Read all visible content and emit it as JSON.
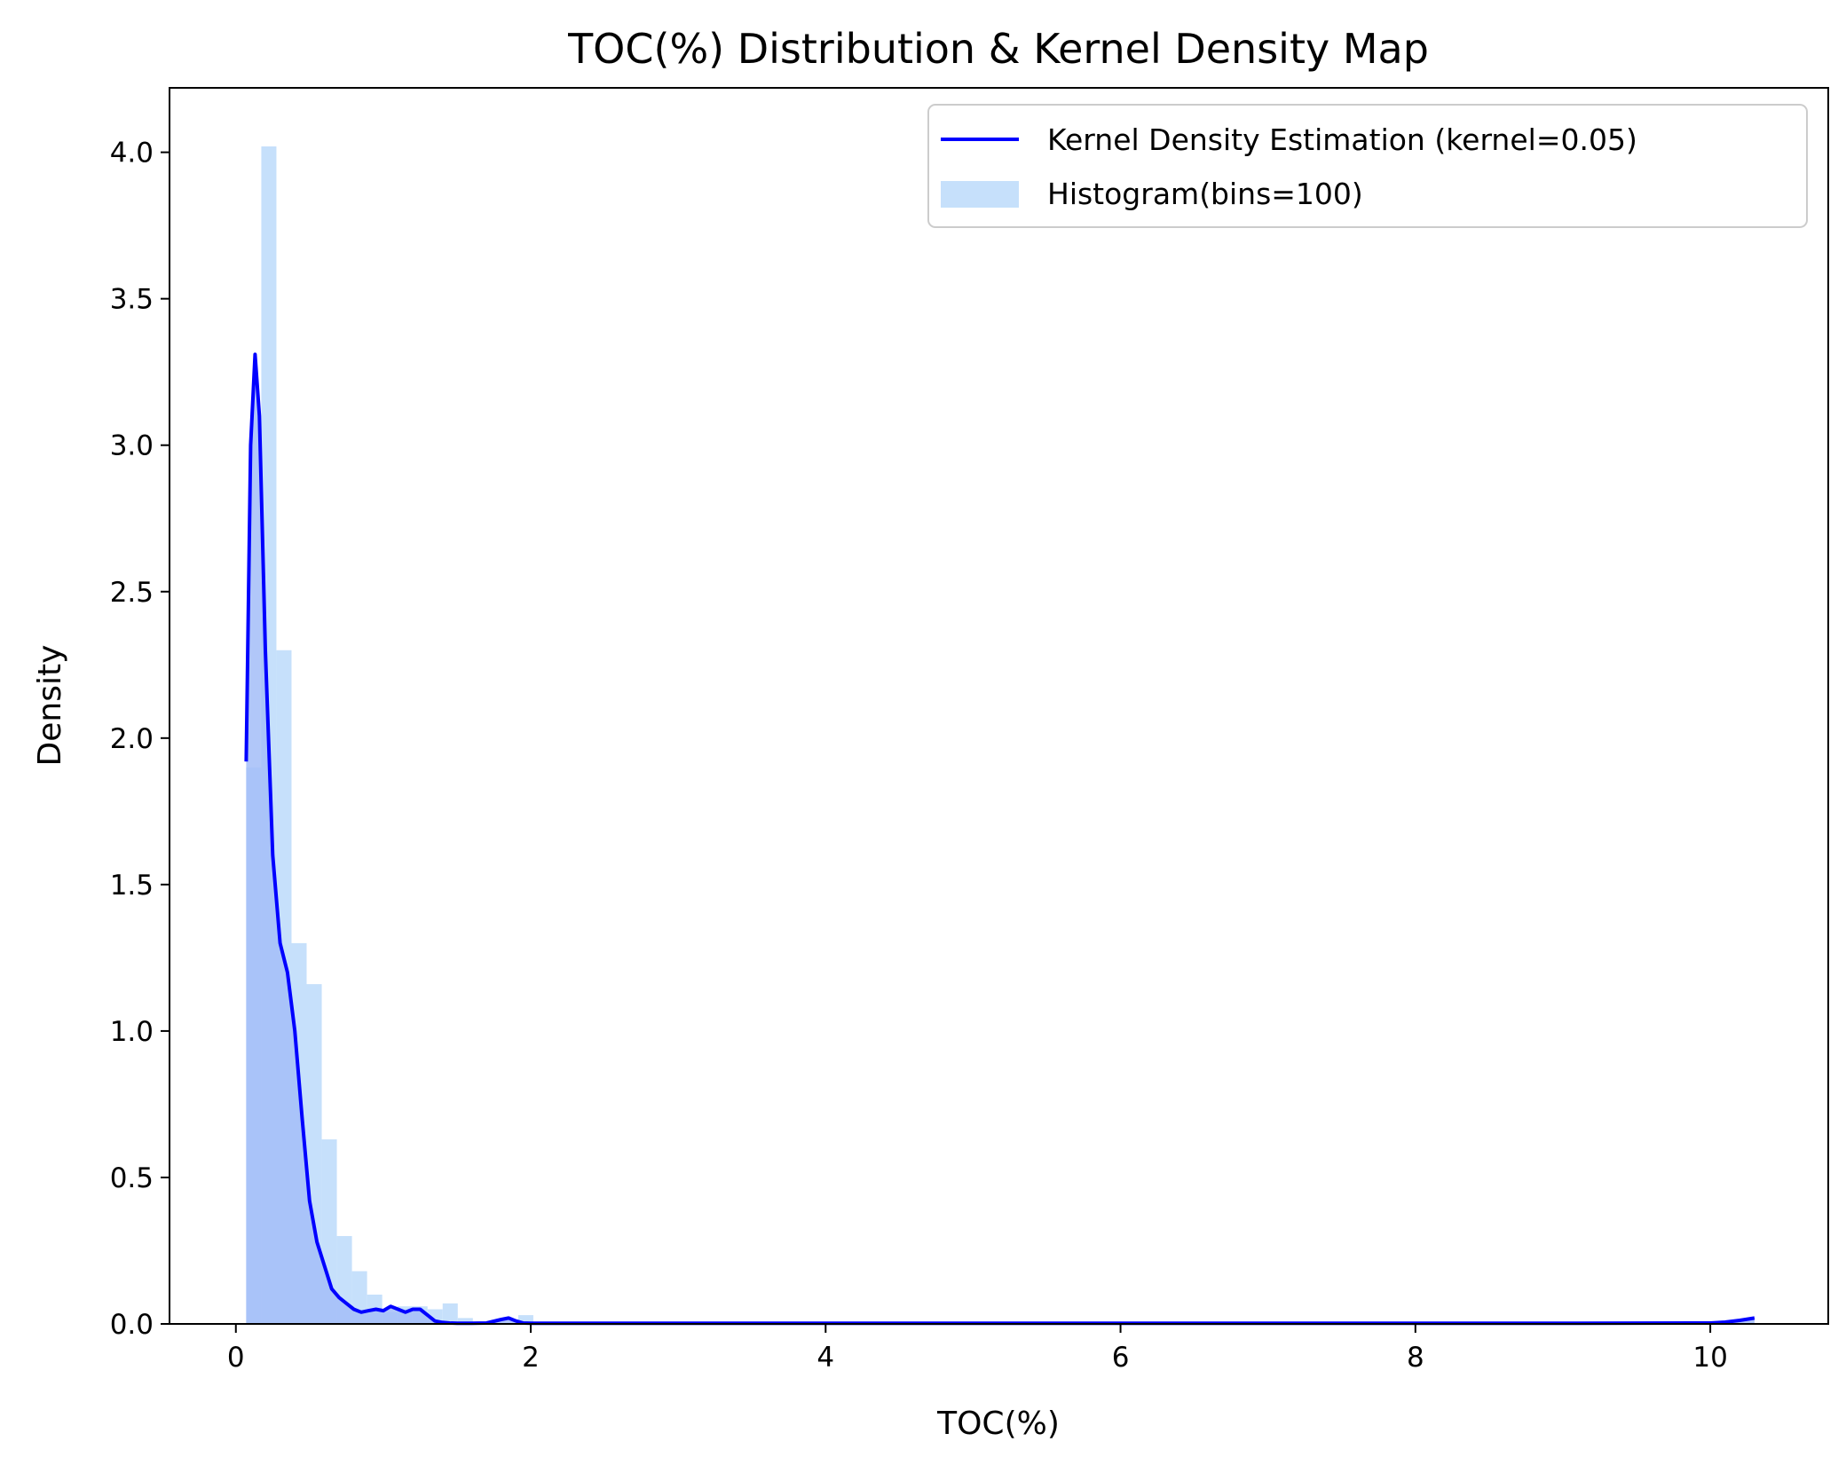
{
  "chart_data": {
    "type": "histogram_kde",
    "title": "TOC(%) Distribution & Kernel Density Map",
    "xlabel": "TOC(%)",
    "ylabel": "Density",
    "xlim": [
      -0.45,
      10.8
    ],
    "ylim": [
      0,
      4.22
    ],
    "xticks": [
      0,
      2,
      4,
      6,
      8,
      10
    ],
    "yticks": [
      0.0,
      0.5,
      1.0,
      1.5,
      2.0,
      2.5,
      3.0,
      3.5,
      4.0
    ],
    "xtick_labels": [
      "0",
      "2",
      "4",
      "6",
      "8",
      "10"
    ],
    "ytick_labels": [
      "0.0",
      "0.5",
      "1.0",
      "1.5",
      "2.0",
      "2.5",
      "3.0",
      "3.5",
      "4.0"
    ],
    "grid": false,
    "legend_position": "top-right",
    "legend": {
      "kde_label": "Kernel Density Estimation (kernel=0.05)",
      "hist_label": "Histogram(bins=100)"
    },
    "colors": {
      "kde_line": "#0000ff",
      "histogram": "#c6e0fb",
      "kde_fill": "#a3bdf8"
    },
    "histogram": {
      "bin_start": 0.07,
      "bin_width": 0.1025,
      "densities": [
        1.9,
        4.02,
        2.3,
        1.3,
        1.16,
        0.63,
        0.3,
        0.18,
        0.1,
        0.04,
        0.06,
        0.06,
        0.05,
        0.07,
        0.02,
        0,
        0,
        0,
        0.03
      ]
    },
    "kde": {
      "x": [
        0.07,
        0.1,
        0.13,
        0.16,
        0.2,
        0.25,
        0.3,
        0.35,
        0.4,
        0.45,
        0.5,
        0.55,
        0.6,
        0.65,
        0.7,
        0.75,
        0.8,
        0.85,
        0.9,
        0.95,
        1.0,
        1.05,
        1.1,
        1.15,
        1.2,
        1.25,
        1.3,
        1.35,
        1.4,
        1.45,
        1.5,
        1.6,
        1.7,
        1.8,
        1.85,
        1.9,
        1.95,
        2.0,
        2.2,
        3.0,
        4.0,
        5.0,
        6.0,
        7.0,
        8.0,
        9.0,
        10.0,
        10.1,
        10.2,
        10.3
      ],
      "y": [
        1.92,
        3.0,
        3.31,
        3.1,
        2.3,
        1.6,
        1.3,
        1.2,
        1.0,
        0.7,
        0.42,
        0.28,
        0.2,
        0.12,
        0.09,
        0.07,
        0.05,
        0.04,
        0.045,
        0.05,
        0.045,
        0.06,
        0.05,
        0.04,
        0.05,
        0.05,
        0.03,
        0.01,
        0.005,
        0.003,
        0.002,
        0.002,
        0.003,
        0.015,
        0.02,
        0.01,
        0.003,
        0.002,
        0.002,
        0.002,
        0.002,
        0.002,
        0.002,
        0.002,
        0.002,
        0.002,
        0.003,
        0.006,
        0.012,
        0.02
      ]
    }
  }
}
